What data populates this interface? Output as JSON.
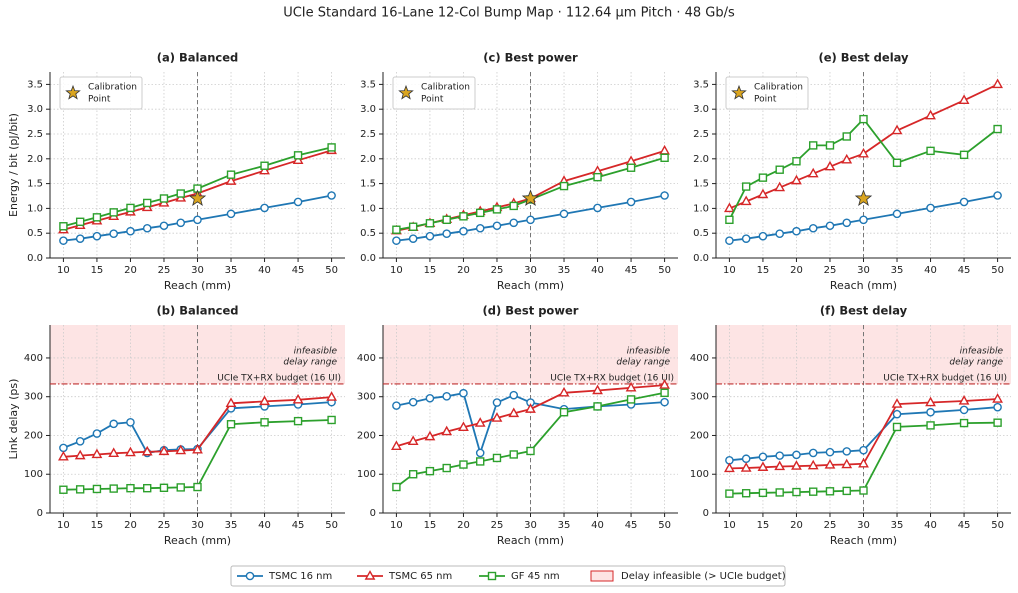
{
  "title": "UCIe Standard 16-Lane 12-Col Bump Map  ·  112.64 µm Pitch  ·  48 Gb/s",
  "legend": {
    "entries": [
      {
        "name": "TSMC 16 nm",
        "color": "#1f77b4",
        "marker": "circle"
      },
      {
        "name": "TSMC 65 nm",
        "color": "#d62728",
        "marker": "triangle"
      },
      {
        "name": "GF 45 nm",
        "color": "#2ca02c",
        "marker": "square"
      },
      {
        "name": "Delay infeasible (> UCIe budget)",
        "color": "#d62728",
        "marker": "patch"
      }
    ]
  },
  "chart_data": [
    {
      "type": "line",
      "title": "(a) Balanced",
      "xlabel": "Reach (mm)",
      "ylabel": "Energy / bit (pJ/bit)",
      "grid": true,
      "vline": 30,
      "x": [
        10,
        12.5,
        15,
        17.5,
        20,
        22.5,
        25,
        27.5,
        30,
        35,
        40,
        45,
        50
      ],
      "xlim": [
        8,
        52
      ],
      "xticks": [
        10,
        15,
        20,
        25,
        30,
        35,
        40,
        45,
        50
      ],
      "ylim": [
        0,
        3.75
      ],
      "yticks": [
        {
          "value": 0,
          "label": "0.0"
        },
        {
          "value": 0.5,
          "label": "0.5"
        },
        {
          "value": 1,
          "label": "1.0"
        },
        {
          "value": 1.5,
          "label": "1.5"
        },
        {
          "value": 2,
          "label": "2.0"
        },
        {
          "value": 2.5,
          "label": "2.5"
        },
        {
          "value": 3,
          "label": "3.0"
        },
        {
          "value": 3.5,
          "label": "3.5"
        }
      ],
      "calibration": {
        "x": 30,
        "y": 1.2,
        "label_lines": [
          "Calibration",
          "Point"
        ]
      },
      "series": [
        {
          "values": [
            0.35,
            0.39,
            0.44,
            0.49,
            0.54,
            0.6,
            0.65,
            0.71,
            0.77,
            0.89,
            1.01,
            1.13,
            1.26
          ]
        },
        {
          "values": [
            0.57,
            0.66,
            0.75,
            0.84,
            0.93,
            1.02,
            1.11,
            1.21,
            1.3,
            1.55,
            1.76,
            1.97,
            2.17
          ]
        },
        {
          "values": [
            0.64,
            0.73,
            0.82,
            0.92,
            1.01,
            1.11,
            1.2,
            1.3,
            1.4,
            1.68,
            1.86,
            2.07,
            2.23
          ]
        }
      ]
    },
    {
      "type": "line",
      "title": "(c) Best power",
      "xlabel": "Reach (mm)",
      "grid": true,
      "vline": 30,
      "x": [
        10,
        12.5,
        15,
        17.5,
        20,
        22.5,
        25,
        27.5,
        30,
        35,
        40,
        45,
        50
      ],
      "xlim": [
        8,
        52
      ],
      "xticks": [
        10,
        15,
        20,
        25,
        30,
        35,
        40,
        45,
        50
      ],
      "ylim": [
        0,
        3.75
      ],
      "yticks": [
        {
          "value": 0,
          "label": "0.0"
        },
        {
          "value": 0.5,
          "label": "0.5"
        },
        {
          "value": 1,
          "label": "1.0"
        },
        {
          "value": 1.5,
          "label": "1.5"
        },
        {
          "value": 2,
          "label": "2.0"
        },
        {
          "value": 2.5,
          "label": "2.5"
        },
        {
          "value": 3,
          "label": "3.0"
        },
        {
          "value": 3.5,
          "label": "3.5"
        }
      ],
      "calibration": {
        "x": 30,
        "y": 1.2,
        "label_lines": [
          "Calibration",
          "Point"
        ]
      },
      "series": [
        {
          "values": [
            0.35,
            0.39,
            0.44,
            0.49,
            0.54,
            0.6,
            0.65,
            0.71,
            0.77,
            0.89,
            1.01,
            1.13,
            1.26
          ]
        },
        {
          "values": [
            0.55,
            0.62,
            0.7,
            0.78,
            0.86,
            0.94,
            1.02,
            1.1,
            1.2,
            1.55,
            1.75,
            1.95,
            2.16
          ]
        },
        {
          "values": [
            0.57,
            0.63,
            0.7,
            0.77,
            0.84,
            0.91,
            0.98,
            1.05,
            1.18,
            1.45,
            1.63,
            1.82,
            2.02
          ]
        }
      ]
    },
    {
      "type": "line",
      "title": "(e) Best delay",
      "xlabel": "Reach (mm)",
      "grid": true,
      "vline": 30,
      "x": [
        10,
        12.5,
        15,
        17.5,
        20,
        22.5,
        25,
        27.5,
        30,
        35,
        40,
        45,
        50
      ],
      "xlim": [
        8,
        52
      ],
      "xticks": [
        10,
        15,
        20,
        25,
        30,
        35,
        40,
        45,
        50
      ],
      "ylim": [
        0,
        3.75
      ],
      "yticks": [
        {
          "value": 0,
          "label": "0.0"
        },
        {
          "value": 0.5,
          "label": "0.5"
        },
        {
          "value": 1,
          "label": "1.0"
        },
        {
          "value": 1.5,
          "label": "1.5"
        },
        {
          "value": 2,
          "label": "2.0"
        },
        {
          "value": 2.5,
          "label": "2.5"
        },
        {
          "value": 3,
          "label": "3.0"
        },
        {
          "value": 3.5,
          "label": "3.5"
        }
      ],
      "calibration": {
        "x": 30,
        "y": 1.2,
        "label_lines": [
          "Calibration",
          "Point"
        ]
      },
      "series": [
        {
          "values": [
            0.35,
            0.39,
            0.44,
            0.49,
            0.54,
            0.6,
            0.65,
            0.71,
            0.77,
            0.89,
            1.01,
            1.13,
            1.26
          ]
        },
        {
          "values": [
            1.0,
            1.14,
            1.28,
            1.42,
            1.56,
            1.7,
            1.84,
            1.98,
            2.1,
            2.57,
            2.87,
            3.18,
            3.5
          ]
        },
        {
          "values": [
            0.77,
            1.44,
            1.62,
            1.78,
            1.95,
            2.27,
            2.27,
            2.45,
            2.8,
            1.92,
            2.16,
            2.08,
            2.6
          ]
        }
      ]
    },
    {
      "type": "line",
      "title": "(b) Balanced",
      "xlabel": "Reach (mm)",
      "ylabel": "Link delay (ps)",
      "grid": true,
      "vline": 30,
      "x": [
        10,
        12.5,
        15,
        17.5,
        20,
        22.5,
        25,
        27.5,
        30,
        35,
        40,
        45,
        50
      ],
      "xlim": [
        8,
        52
      ],
      "xticks": [
        10,
        15,
        20,
        25,
        30,
        35,
        40,
        45,
        50
      ],
      "ylim": [
        0,
        485
      ],
      "yticks": [
        0,
        100,
        200,
        300,
        400
      ],
      "budget": {
        "value": 333,
        "label": "UCIe TX+RX budget (16 UI)",
        "region_lines": [
          "infeasible",
          "delay range"
        ]
      },
      "series": [
        {
          "values": [
            168,
            185,
            205,
            230,
            234,
            155,
            162,
            164,
            165,
            270,
            275,
            280,
            286
          ]
        },
        {
          "values": [
            145,
            148,
            151,
            154,
            156,
            158,
            159,
            161,
            163,
            283,
            288,
            292,
            299
          ]
        },
        {
          "values": [
            60,
            61,
            62,
            63,
            64,
            64,
            65,
            66,
            67,
            229,
            234,
            237,
            240
          ]
        }
      ]
    },
    {
      "type": "line",
      "title": "(d) Best power",
      "xlabel": "Reach (mm)",
      "grid": true,
      "vline": 30,
      "x": [
        10,
        12.5,
        15,
        17.5,
        20,
        22.5,
        25,
        27.5,
        30,
        35,
        40,
        45,
        50
      ],
      "xlim": [
        8,
        52
      ],
      "xticks": [
        10,
        15,
        20,
        25,
        30,
        35,
        40,
        45,
        50
      ],
      "ylim": [
        0,
        485
      ],
      "yticks": [
        0,
        100,
        200,
        300,
        400
      ],
      "budget": {
        "value": 333,
        "label": "UCIe TX+RX budget (16 UI)",
        "region_lines": [
          "infeasible",
          "delay range"
        ]
      },
      "series": [
        {
          "values": [
            277,
            286,
            296,
            301,
            309,
            155,
            285,
            304,
            285,
            268,
            275,
            280,
            286
          ]
        },
        {
          "values": [
            172,
            185,
            197,
            210,
            221,
            232,
            245,
            257,
            268,
            310,
            316,
            323,
            330
          ]
        },
        {
          "values": [
            67,
            100,
            108,
            116,
            125,
            133,
            142,
            151,
            160,
            260,
            275,
            293,
            310
          ]
        }
      ]
    },
    {
      "type": "line",
      "title": "(f) Best delay",
      "xlabel": "Reach (mm)",
      "grid": true,
      "vline": 30,
      "x": [
        10,
        12.5,
        15,
        17.5,
        20,
        22.5,
        25,
        27.5,
        30,
        35,
        40,
        45,
        50
      ],
      "xlim": [
        8,
        52
      ],
      "xticks": [
        10,
        15,
        20,
        25,
        30,
        35,
        40,
        45,
        50
      ],
      "ylim": [
        0,
        485
      ],
      "yticks": [
        0,
        100,
        200,
        300,
        400
      ],
      "budget": {
        "value": 333,
        "label": "UCIe TX+RX budget (16 UI)",
        "region_lines": [
          "infeasible",
          "delay range"
        ]
      },
      "series": [
        {
          "values": [
            136,
            140,
            145,
            148,
            150,
            155,
            157,
            159,
            162,
            255,
            260,
            266,
            273
          ]
        },
        {
          "values": [
            115,
            116,
            118,
            120,
            121,
            122,
            124,
            125,
            127,
            281,
            285,
            289,
            294
          ]
        },
        {
          "values": [
            50,
            51,
            52,
            53,
            54,
            55,
            56,
            57,
            58,
            222,
            226,
            232,
            233
          ]
        }
      ]
    }
  ]
}
